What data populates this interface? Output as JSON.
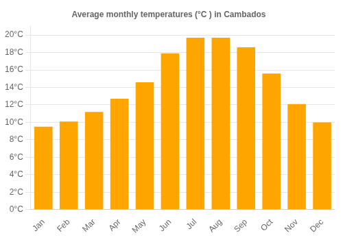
{
  "chart_data": {
    "type": "bar",
    "title": "Average monthly temperatures (°C ) in Cambados",
    "categories": [
      "Jan",
      "Feb",
      "Mar",
      "Apr",
      "May",
      "Jun",
      "Jul",
      "Aug",
      "Sep",
      "Oct",
      "Nov",
      "Dec"
    ],
    "values": [
      9.5,
      10.1,
      11.2,
      12.7,
      14.6,
      17.9,
      19.7,
      19.7,
      18.6,
      15.6,
      12.1,
      10.0
    ],
    "color": "#FFA500",
    "ylim": [
      0,
      21
    ],
    "yticks": [
      {
        "value": 0,
        "label": "0°C"
      },
      {
        "value": 2,
        "label": "2°C"
      },
      {
        "value": 4,
        "label": "4°C"
      },
      {
        "value": 6,
        "label": "6°C"
      },
      {
        "value": 8,
        "label": "8°C"
      },
      {
        "value": 10,
        "label": "10°C"
      },
      {
        "value": 12,
        "label": "12°C"
      },
      {
        "value": 14,
        "label": "14°C"
      },
      {
        "value": 16,
        "label": "16°C"
      },
      {
        "value": 18,
        "label": "18°C"
      },
      {
        "value": 20,
        "label": "20°C"
      }
    ],
    "grid": true
  }
}
